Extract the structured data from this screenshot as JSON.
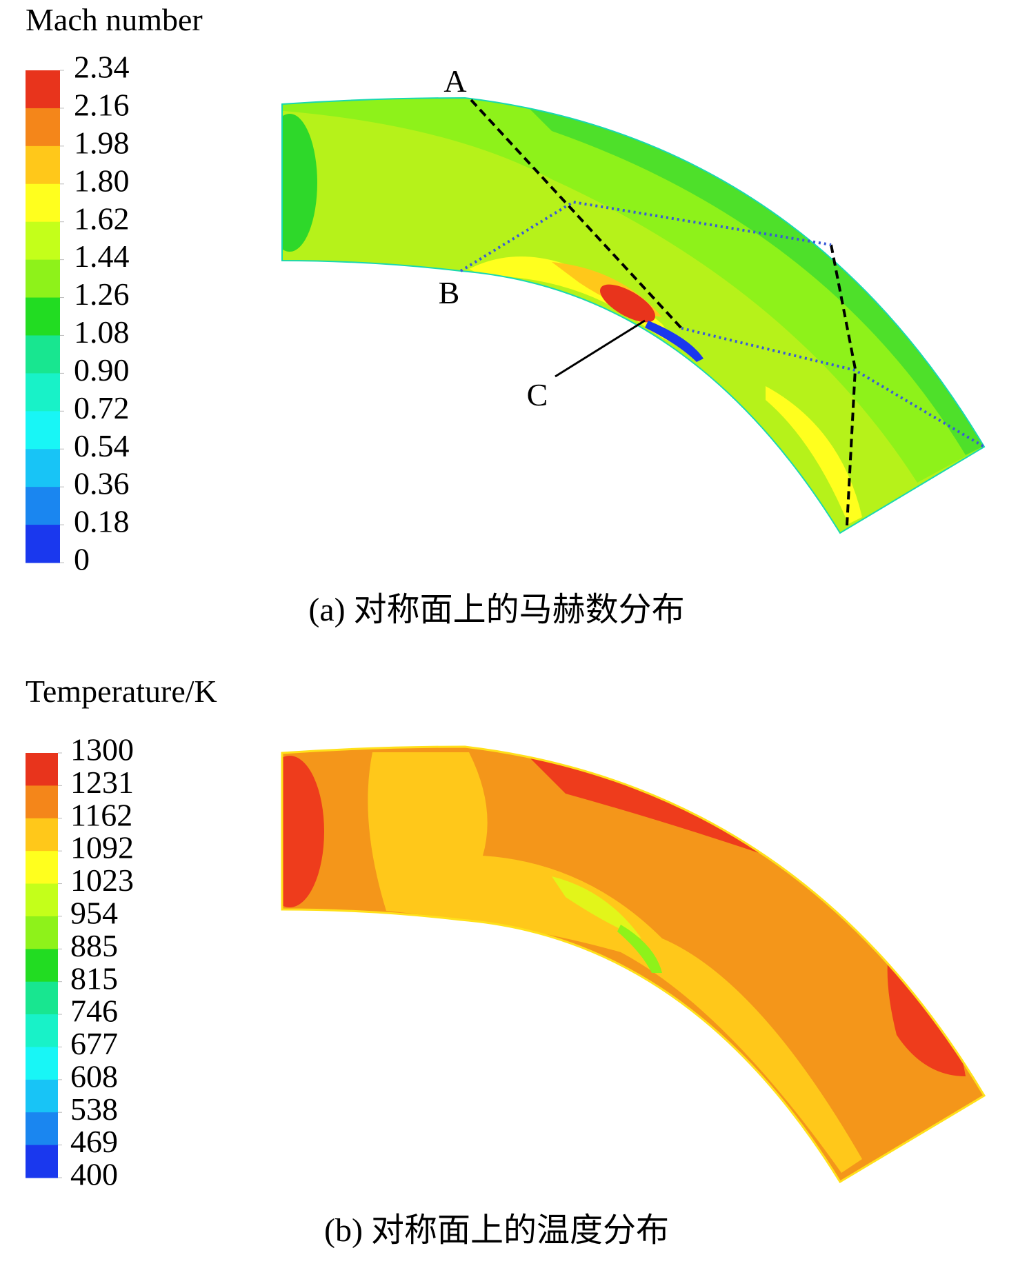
{
  "panels": [
    {
      "title": "Mach number",
      "colorbar": {
        "labels": [
          "2.34",
          "2.16",
          "1.98",
          "1.80",
          "1.62",
          "1.44",
          "1.26",
          "1.08",
          "0.90",
          "0.72",
          "0.54",
          "0.36",
          "0.18",
          "0"
        ],
        "colors": [
          "#e8341c",
          "#f4861a",
          "#ffc81a",
          "#ffff1e",
          "#c4ff1a",
          "#8ef21a",
          "#22dc22",
          "#18e690",
          "#18f2c8",
          "#18f6f6",
          "#18c4f6",
          "#1a86f0",
          "#1a38ee"
        ]
      },
      "markers": [
        "A",
        "B",
        "C"
      ],
      "caption": "(a) 对称面上的马赫数分布"
    },
    {
      "title": "Temperature/K",
      "colorbar": {
        "labels": [
          "1300",
          "1231",
          "1162",
          "1092",
          "1023",
          "954",
          "885",
          "815",
          "746",
          "677",
          "608",
          "538",
          "469",
          "400"
        ],
        "colors": [
          "#e8341c",
          "#f4861a",
          "#ffc81a",
          "#ffff1e",
          "#c4ff1a",
          "#8ef21a",
          "#22dc22",
          "#18e690",
          "#18f2c8",
          "#18f6f6",
          "#18c4f6",
          "#1a86f0",
          "#1a38ee"
        ]
      },
      "caption": "(b) 对称面上的温度分布"
    }
  ]
}
